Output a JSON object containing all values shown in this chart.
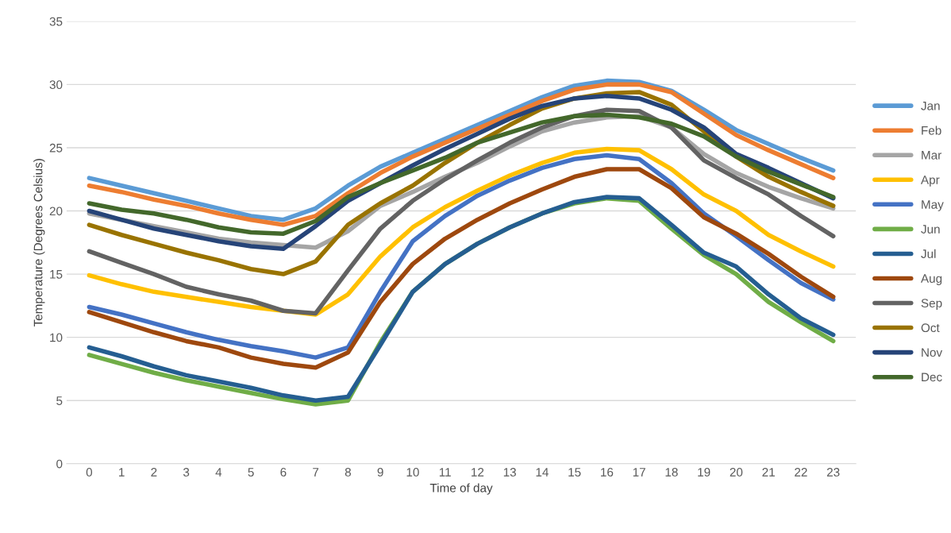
{
  "chart_data": {
    "type": "line",
    "xlabel": "Time of day",
    "ylabel": "Temperature (Degrees Celsius)",
    "categories": [
      "0",
      "1",
      "2",
      "3",
      "4",
      "5",
      "6",
      "7",
      "8",
      "9",
      "10",
      "11",
      "12",
      "13",
      "14",
      "15",
      "16",
      "17",
      "18",
      "19",
      "20",
      "21",
      "22",
      "23"
    ],
    "ylim": [
      0,
      35
    ],
    "yticks": [
      0,
      5,
      10,
      15,
      20,
      25,
      30,
      35
    ],
    "grid": "y",
    "legend": "right",
    "line_style": "solid",
    "marker": "none",
    "series": [
      {
        "name": "Jan",
        "color": "#5b9bd5",
        "values": [
          22.6,
          22.0,
          21.4,
          20.8,
          20.2,
          19.6,
          19.3,
          20.2,
          22.0,
          23.5,
          24.6,
          25.7,
          26.8,
          27.9,
          29.0,
          29.9,
          30.3,
          30.2,
          29.5,
          28.0,
          26.4,
          25.3,
          24.2,
          23.2
        ]
      },
      {
        "name": "Feb",
        "color": "#ed7d31",
        "values": [
          22.0,
          21.5,
          20.9,
          20.4,
          19.8,
          19.3,
          18.9,
          19.6,
          21.4,
          23.0,
          24.3,
          25.4,
          26.5,
          27.6,
          28.7,
          29.6,
          30.0,
          30.0,
          29.4,
          27.7,
          26.0,
          24.8,
          23.7,
          22.6
        ]
      },
      {
        "name": "Mar",
        "color": "#a5a5a5",
        "values": [
          19.8,
          19.3,
          18.8,
          18.3,
          17.8,
          17.5,
          17.3,
          17.1,
          18.4,
          20.4,
          21.5,
          22.7,
          23.8,
          25.1,
          26.3,
          27.0,
          27.4,
          27.5,
          26.6,
          24.5,
          23.0,
          21.9,
          21.0,
          20.2
        ]
      },
      {
        "name": "Apr",
        "color": "#ffc000",
        "values": [
          14.9,
          14.2,
          13.6,
          13.2,
          12.8,
          12.4,
          12.1,
          11.8,
          13.4,
          16.4,
          18.7,
          20.3,
          21.6,
          22.8,
          23.8,
          24.6,
          24.9,
          24.8,
          23.3,
          21.3,
          20.0,
          18.1,
          16.8,
          15.6
        ]
      },
      {
        "name": "May",
        "color": "#4472c4",
        "values": [
          12.4,
          11.8,
          11.1,
          10.4,
          9.8,
          9.3,
          8.9,
          8.4,
          9.2,
          13.6,
          17.6,
          19.6,
          21.2,
          22.4,
          23.4,
          24.1,
          24.4,
          24.1,
          22.2,
          19.8,
          18.0,
          16.1,
          14.3,
          13.0
        ]
      },
      {
        "name": "Jun",
        "color": "#70ad47",
        "values": [
          8.6,
          7.9,
          7.2,
          6.6,
          6.1,
          5.6,
          5.1,
          4.7,
          5.0,
          9.6,
          13.6,
          15.8,
          17.4,
          18.7,
          19.8,
          20.6,
          21.0,
          20.8,
          18.6,
          16.5,
          15.0,
          12.8,
          11.2,
          9.7
        ]
      },
      {
        "name": "Jul",
        "color": "#255e91",
        "values": [
          9.2,
          8.5,
          7.7,
          7.0,
          6.5,
          6.0,
          5.4,
          5.0,
          5.3,
          9.4,
          13.6,
          15.8,
          17.4,
          18.7,
          19.8,
          20.7,
          21.1,
          21.0,
          18.9,
          16.7,
          15.6,
          13.4,
          11.5,
          10.2
        ]
      },
      {
        "name": "Aug",
        "color": "#9e480e",
        "values": [
          12.0,
          11.2,
          10.4,
          9.7,
          9.2,
          8.4,
          7.9,
          7.6,
          8.8,
          12.8,
          15.8,
          17.8,
          19.3,
          20.6,
          21.7,
          22.7,
          23.3,
          23.3,
          21.8,
          19.5,
          18.2,
          16.6,
          14.8,
          13.2
        ]
      },
      {
        "name": "Sep",
        "color": "#636363",
        "values": [
          16.8,
          15.9,
          15.0,
          14.0,
          13.4,
          12.9,
          12.1,
          11.9,
          15.3,
          18.6,
          20.8,
          22.5,
          24.0,
          25.4,
          26.6,
          27.5,
          28.0,
          27.9,
          26.6,
          24.0,
          22.6,
          21.3,
          19.6,
          18.0
        ]
      },
      {
        "name": "Oct",
        "color": "#997300",
        "values": [
          18.9,
          18.1,
          17.4,
          16.7,
          16.1,
          15.4,
          15.0,
          16.0,
          18.9,
          20.6,
          22.0,
          23.8,
          25.4,
          26.8,
          28.1,
          28.9,
          29.3,
          29.4,
          28.4,
          26.3,
          24.3,
          22.7,
          21.5,
          20.4
        ]
      },
      {
        "name": "Nov",
        "color": "#264478",
        "values": [
          20.0,
          19.3,
          18.6,
          18.1,
          17.6,
          17.2,
          17.0,
          18.8,
          20.8,
          22.2,
          23.6,
          24.9,
          26.1,
          27.3,
          28.3,
          28.9,
          29.1,
          28.9,
          28.0,
          26.6,
          24.5,
          23.4,
          22.2,
          21.0
        ]
      },
      {
        "name": "Dec",
        "color": "#43682b",
        "values": [
          20.6,
          20.1,
          19.8,
          19.3,
          18.7,
          18.3,
          18.2,
          19.2,
          21.1,
          22.2,
          23.2,
          24.2,
          25.4,
          26.2,
          27.0,
          27.5,
          27.6,
          27.4,
          26.9,
          25.9,
          24.3,
          23.1,
          22.1,
          21.1
        ]
      }
    ]
  }
}
